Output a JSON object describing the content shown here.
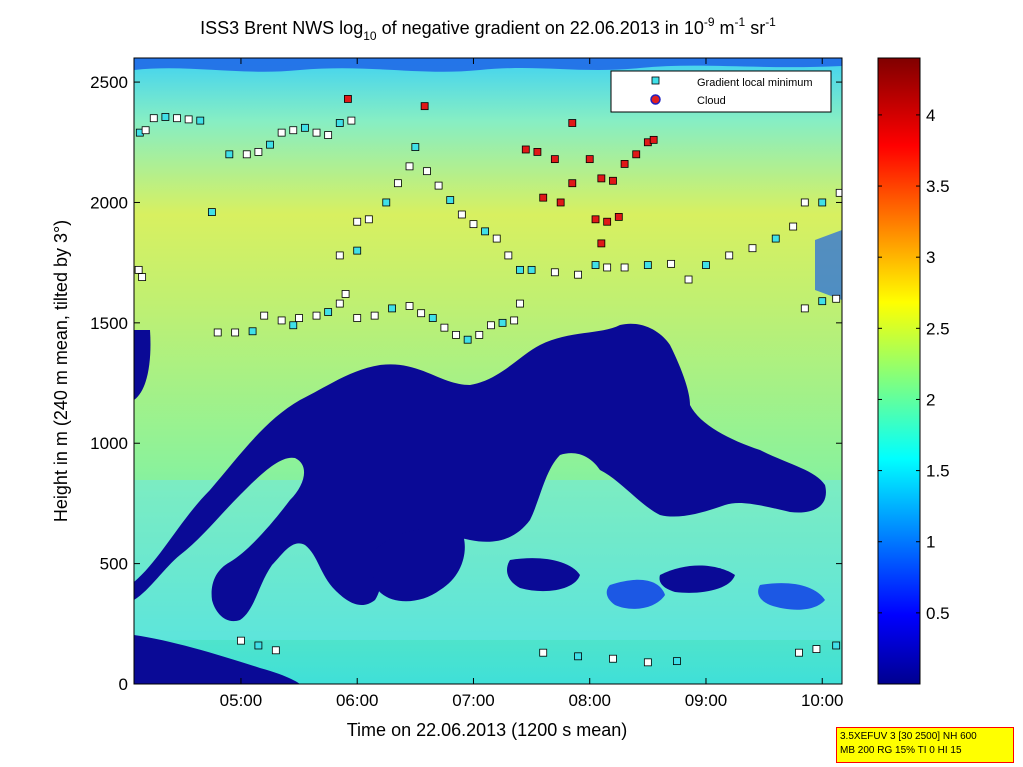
{
  "chart_data": {
    "type": "heatmap",
    "title_parts": {
      "prefix": "ISS3 Brent NWS log",
      "sub": "10",
      "mid": " of negative gradient on 22.06.2013 in 10",
      "sup1": "-9",
      "mid2": " m",
      "sup2": "-1",
      "mid3": " sr",
      "sup3": "-1"
    },
    "xlabel": "Time on 22.06.2013 (1200 s mean)",
    "ylabel": "Height in m (240 m mean, tilted by 3°)",
    "xlim_hours": [
      4.08,
      10.17
    ],
    "ylim": [
      0,
      2600
    ],
    "x_ticks": [
      {
        "value": 5,
        "label": "05:00"
      },
      {
        "value": 6,
        "label": "06:00"
      },
      {
        "value": 7,
        "label": "07:00"
      },
      {
        "value": 8,
        "label": "08:00"
      },
      {
        "value": 9,
        "label": "09:00"
      },
      {
        "value": 10,
        "label": "10:00"
      }
    ],
    "y_ticks": [
      0,
      500,
      1000,
      1500,
      2000,
      2500
    ],
    "colorbar": {
      "range": [
        0,
        4.4
      ],
      "ticks": [
        "0.5",
        "1",
        "1.5",
        "2",
        "2.5",
        "3",
        "3.5",
        "4"
      ],
      "tick_values": [
        0.5,
        1,
        1.5,
        2,
        2.5,
        3,
        3.5,
        4
      ],
      "colormap": "jet"
    },
    "legend": {
      "position": "top-right",
      "entries": [
        "Gradient local minimum",
        "Cloud"
      ]
    },
    "series": [
      {
        "name": "Gradient local minimum",
        "marker": "square",
        "points": [
          [
            4.13,
            2290
          ],
          [
            4.18,
            2300
          ],
          [
            4.25,
            2350
          ],
          [
            4.35,
            2355
          ],
          [
            4.45,
            2350
          ],
          [
            4.55,
            2345
          ],
          [
            4.65,
            2340
          ],
          [
            4.12,
            1720
          ],
          [
            4.15,
            1690
          ],
          [
            4.75,
            1960
          ],
          [
            4.8,
            1460
          ],
          [
            4.95,
            1460
          ],
          [
            5.1,
            1465
          ],
          [
            5.2,
            1530
          ],
          [
            5.35,
            1510
          ],
          [
            5.45,
            1490
          ],
          [
            5.5,
            1520
          ],
          [
            5.65,
            1530
          ],
          [
            5.75,
            1545
          ],
          [
            5.85,
            1580
          ],
          [
            5.9,
            1620
          ],
          [
            4.9,
            2200
          ],
          [
            5.05,
            2200
          ],
          [
            5.15,
            2210
          ],
          [
            5.25,
            2240
          ],
          [
            5.35,
            2290
          ],
          [
            5.45,
            2300
          ],
          [
            5.55,
            2310
          ],
          [
            5.65,
            2290
          ],
          [
            5.75,
            2280
          ],
          [
            5.85,
            2330
          ],
          [
            5.95,
            2340
          ],
          [
            5.85,
            1780
          ],
          [
            6.0,
            1800
          ],
          [
            6.0,
            1920
          ],
          [
            6.1,
            1930
          ],
          [
            6.25,
            2000
          ],
          [
            6.35,
            2080
          ],
          [
            6.45,
            2150
          ],
          [
            6.5,
            2230
          ],
          [
            6.6,
            2130
          ],
          [
            6.7,
            2070
          ],
          [
            6.8,
            2010
          ],
          [
            6.9,
            1950
          ],
          [
            7.0,
            1910
          ],
          [
            7.1,
            1880
          ],
          [
            7.2,
            1850
          ],
          [
            7.3,
            1780
          ],
          [
            7.4,
            1720
          ],
          [
            6.0,
            1520
          ],
          [
            6.15,
            1530
          ],
          [
            6.3,
            1560
          ],
          [
            6.45,
            1570
          ],
          [
            6.55,
            1540
          ],
          [
            6.65,
            1520
          ],
          [
            6.75,
            1480
          ],
          [
            6.85,
            1450
          ],
          [
            6.95,
            1430
          ],
          [
            7.05,
            1450
          ],
          [
            7.15,
            1490
          ],
          [
            7.25,
            1500
          ],
          [
            7.35,
            1510
          ],
          [
            7.4,
            1580
          ],
          [
            7.5,
            1720
          ],
          [
            7.7,
            1710
          ],
          [
            7.9,
            1700
          ],
          [
            8.05,
            1740
          ],
          [
            8.15,
            1730
          ],
          [
            8.3,
            1730
          ],
          [
            8.5,
            1740
          ],
          [
            8.7,
            1745
          ],
          [
            8.85,
            1680
          ],
          [
            9.0,
            1740
          ],
          [
            9.2,
            1780
          ],
          [
            9.4,
            1810
          ],
          [
            9.6,
            1850
          ],
          [
            9.75,
            1900
          ],
          [
            9.85,
            2000
          ],
          [
            10.0,
            2000
          ],
          [
            10.15,
            2040
          ],
          [
            9.85,
            1560
          ],
          [
            10.0,
            1590
          ],
          [
            10.12,
            1600
          ],
          [
            5.0,
            180
          ],
          [
            5.15,
            160
          ],
          [
            5.3,
            140
          ],
          [
            7.6,
            130
          ],
          [
            7.9,
            115
          ],
          [
            8.2,
            105
          ],
          [
            8.5,
            90
          ],
          [
            8.75,
            95
          ],
          [
            9.8,
            130
          ],
          [
            9.95,
            145
          ],
          [
            10.12,
            160
          ]
        ]
      },
      {
        "name": "Cloud",
        "marker": "square",
        "points": [
          [
            5.92,
            2430
          ],
          [
            6.58,
            2400
          ],
          [
            7.45,
            2220
          ],
          [
            7.55,
            2210
          ],
          [
            7.7,
            2180
          ],
          [
            7.85,
            2330
          ],
          [
            8.0,
            2180
          ],
          [
            8.1,
            2100
          ],
          [
            8.2,
            2090
          ],
          [
            8.3,
            2160
          ],
          [
            8.4,
            2200
          ],
          [
            8.5,
            2250
          ],
          [
            8.55,
            2260
          ],
          [
            7.6,
            2020
          ],
          [
            7.75,
            2000
          ],
          [
            7.85,
            2080
          ],
          [
            8.05,
            1930
          ],
          [
            8.15,
            1920
          ],
          [
            8.1,
            1830
          ],
          [
            8.25,
            1940
          ]
        ]
      }
    ]
  },
  "info_box": {
    "line1": "3.5XEFUV 3 [30 2500] NH 600",
    "line2": "MB 200 RG 15% TI 0 HI 15"
  }
}
